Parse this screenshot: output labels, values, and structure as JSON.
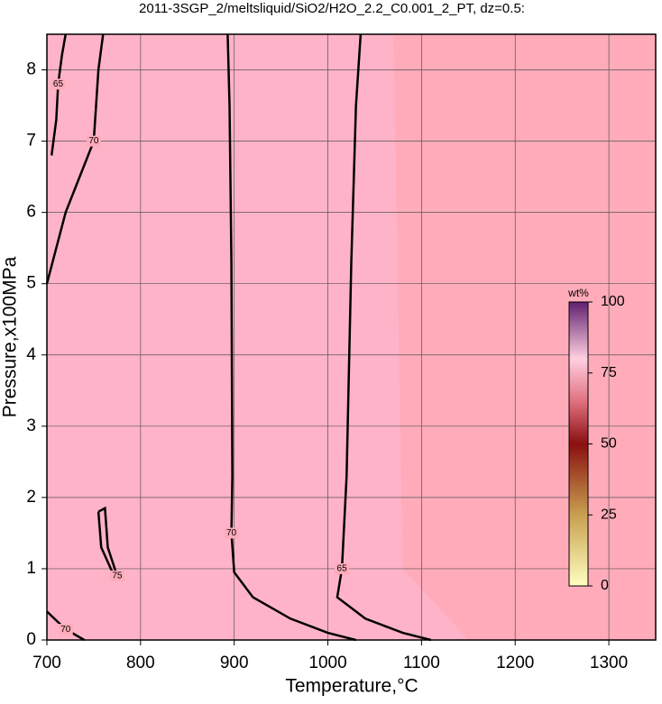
{
  "chart_data": {
    "type": "contour",
    "title": "2011-3SGP_2/meltsliquid/SiO2/H2O_2.2_C0.001_2_PT, dz=0.5:",
    "x_label": "Temperature,°C",
    "y_label": "Pressure,x100MPa",
    "xlim": [
      700,
      1350
    ],
    "ylim": [
      0,
      8.5
    ],
    "xticks": [
      700,
      800,
      900,
      1000,
      1100,
      1200,
      1300
    ],
    "yticks": [
      0,
      1,
      2,
      3,
      4,
      5,
      6,
      7,
      8
    ],
    "grid": true,
    "background": "#ffabba",
    "contours": [
      {
        "level": 70,
        "x": [
          1030,
          1000,
          960,
          920,
          900,
          897,
          898,
          897,
          895,
          893
        ],
        "y": [
          0,
          0.1,
          0.3,
          0.6,
          0.95,
          1.5,
          2.3,
          5.3,
          7.5,
          8.5
        ]
      },
      {
        "level": 65,
        "x": [
          1110,
          1080,
          1040,
          1010,
          1015,
          1020,
          1025,
          1030,
          1035
        ],
        "y": [
          0,
          0.1,
          0.3,
          0.6,
          1,
          2.3,
          5.3,
          7.5,
          8.5
        ]
      },
      {
        "level": 70,
        "x": [
          700,
          720,
          735,
          750,
          755,
          760
        ],
        "y": [
          5,
          6,
          6.5,
          7,
          8,
          8.5
        ]
      },
      {
        "level": 65,
        "x": [
          705,
          710,
          712,
          716,
          720
        ],
        "y": [
          6.8,
          7.3,
          7.8,
          8.2,
          8.5
        ]
      },
      {
        "level": 75,
        "x": [
          755,
          762,
          765,
          775,
          770,
          758,
          755
        ],
        "y": [
          1.8,
          1.85,
          1.3,
          0.9,
          0.95,
          1.3,
          1.8
        ]
      },
      {
        "level": 70,
        "x": [
          700,
          720,
          740
        ],
        "y": [
          0.4,
          0.15,
          0
        ]
      }
    ],
    "colorbar": {
      "label": "wt%",
      "lim": [
        0,
        100
      ],
      "ticks": [
        0,
        25,
        50,
        75,
        100
      ]
    }
  }
}
